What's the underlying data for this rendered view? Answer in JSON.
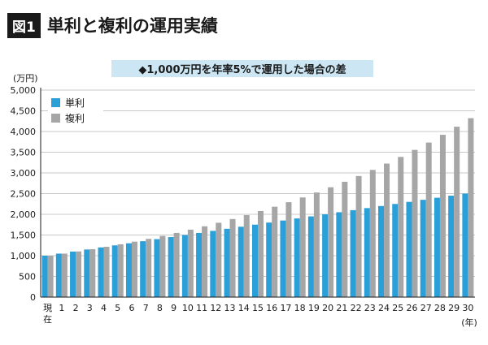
{
  "header": {
    "badge": "図1",
    "title": "単利と複利の運用実績"
  },
  "colors": {
    "simple": "#2a9fd8",
    "compound": "#a6a6a6",
    "grid": "#c8c8c8",
    "subtitle_band": "#cde6f4"
  },
  "chart_data": {
    "type": "bar",
    "title": "◆1,000万円を年率5%で運用した場合の差",
    "ylabel": "(万円)",
    "xunit": "(年)",
    "ylim": [
      0,
      5000
    ],
    "yticks": [
      "0",
      "500",
      "1,000",
      "1,500",
      "2,000",
      "2,500",
      "3,000",
      "3,500",
      "4,000",
      "4,500",
      "5,000"
    ],
    "categories": [
      "現在",
      "1",
      "2",
      "3",
      "4",
      "5",
      "6",
      "7",
      "8",
      "9",
      "10",
      "11",
      "12",
      "13",
      "14",
      "15",
      "16",
      "17",
      "18",
      "19",
      "20",
      "21",
      "22",
      "23",
      "24",
      "25",
      "26",
      "27",
      "28",
      "29",
      "30"
    ],
    "grid": true,
    "legend_position": "top-left",
    "series": [
      {
        "name": "単利",
        "values": [
          1000,
          1050,
          1100,
          1150,
          1200,
          1250,
          1300,
          1350,
          1400,
          1450,
          1500,
          1550,
          1600,
          1650,
          1700,
          1750,
          1800,
          1850,
          1900,
          1950,
          2000,
          2050,
          2100,
          2150,
          2200,
          2250,
          2300,
          2350,
          2400,
          2450,
          2500
        ]
      },
      {
        "name": "複利",
        "values": [
          1000,
          1050,
          1103,
          1158,
          1216,
          1276,
          1340,
          1407,
          1477,
          1551,
          1629,
          1710,
          1796,
          1886,
          1980,
          2079,
          2183,
          2292,
          2407,
          2527,
          2653,
          2786,
          2925,
          3072,
          3225,
          3386,
          3556,
          3733,
          3920,
          4116,
          4322
        ]
      }
    ]
  }
}
